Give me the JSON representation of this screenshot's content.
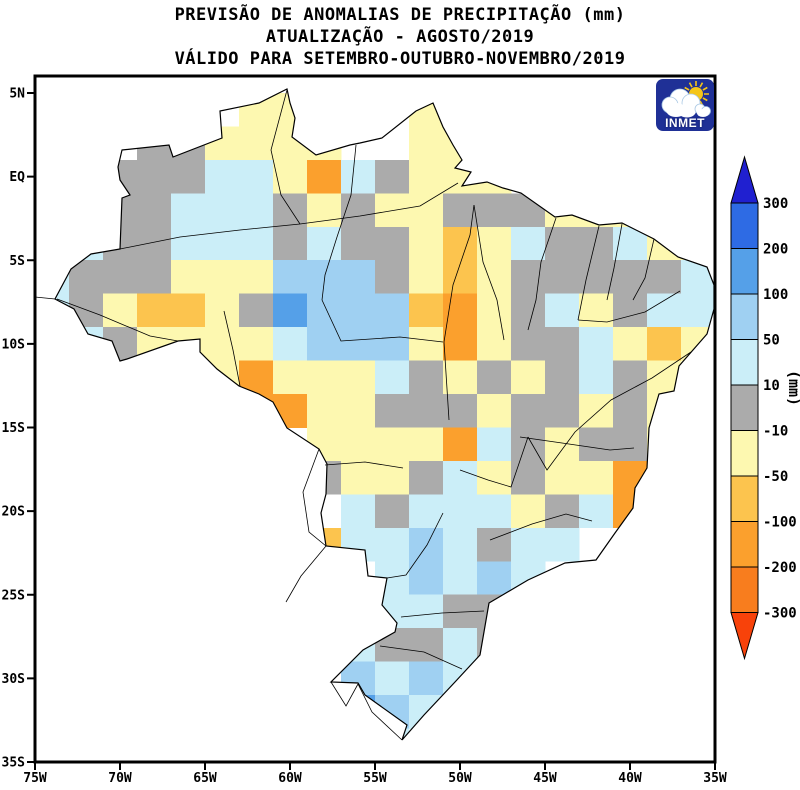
{
  "title": {
    "line1": "PREVISÃO DE ANOMALIAS DE PRECIPITAÇÃO (mm)",
    "line2": "ATUALIZAÇÃO - AGOSTO/2019",
    "line3": "VÁLIDO PARA SETEMBRO-OUTUBRO-NOVEMBRO/2019"
  },
  "logo": {
    "text": "INMET",
    "bg_color": "#1f3096",
    "sun_color": "#f5c518",
    "cloud_color": "#ffffff"
  },
  "axes": {
    "y_tick_labels": [
      "5N",
      "EQ",
      "5S",
      "10S",
      "15S",
      "20S",
      "25S",
      "30S",
      "35S"
    ],
    "x_tick_labels": [
      "75W",
      "70W",
      "65W",
      "60W",
      "55W",
      "50W",
      "45W",
      "40W",
      "35W"
    ]
  },
  "colorbar": {
    "unit": "(mm)",
    "levels": [
      "300",
      "200",
      "100",
      "50",
      "10",
      "-10",
      "-50",
      "-100",
      "-200",
      "-300"
    ],
    "segment_colors": [
      "#2e6be4",
      "#55a0e8",
      "#9fd0f2",
      "#cbeef8",
      "#ababab",
      "#fdf8b0",
      "#fcc44e",
      "#fba02d",
      "#f87d1e"
    ],
    "arrow_top_color": "#2020d0",
    "arrow_bottom_color": "#f8420a"
  },
  "chart_data": {
    "type": "heatmap",
    "title": "PREVISÃO DE ANOMALIAS DE PRECIPITAÇÃO (mm) - SON/2019",
    "units": "mm",
    "lon_start_deg_w": 75,
    "lat_start_deg_n": 7,
    "cell_size_deg": 2,
    "n_cols": 20,
    "n_rows": 21,
    "no_data_char": ".",
    "palette": {
      "Y": "#fdf8b0",
      "G": "#ababab",
      "C": "#cbeef8",
      "B": "#9fd0f2",
      "M": "#55a0e8",
      "D": "#2e6be4",
      "o": "#fcc44e",
      "O": "#fba02d",
      "R": "#f87d1e"
    },
    "legend": {
      "D": "200 to 300 mm",
      "M": "100 to 200 mm",
      "B": "50 to 100 mm",
      "C": "10 to 50 mm",
      "G": "-10 to 10 mm",
      "Y": "-50 to -10 mm",
      "o": "-100 to -50 mm",
      "O": "-200 to -100 mm",
      "R": "-300 to -200 mm"
    },
    "grid_rows": [
      "....................",
      "......YY...YY.......",
      "...GGYYYY..YY.......",
      "..GGGCCYOCGYYY......",
      ".CGGCCCGYGYYGGGYYY..",
      ".CGGCCCGCGGYoYCGGCYY",
      "CGGGYYYBBBGYoYGGGGGC",
      "CGYooYGMBBBoOYGCYGCC",
      ".CGYYYYCBBBYOYGGCYoY",
      ".....YOYYYCGYGYGCGY.",
      "......OOYYGGGYGGYGY.",
      "........YYYYOCGYGGY.",
      "........GYYGCYGYYO..",
      ".........CGCCCYGCO..",
      "........oCCBCGCC....",
      "..........CBCBC.....",
      "..........CCGG......",
      ".........CGGCG......",
      ".........BCBC.......",
      ".........MBC........",
      "..........C........."
    ]
  }
}
